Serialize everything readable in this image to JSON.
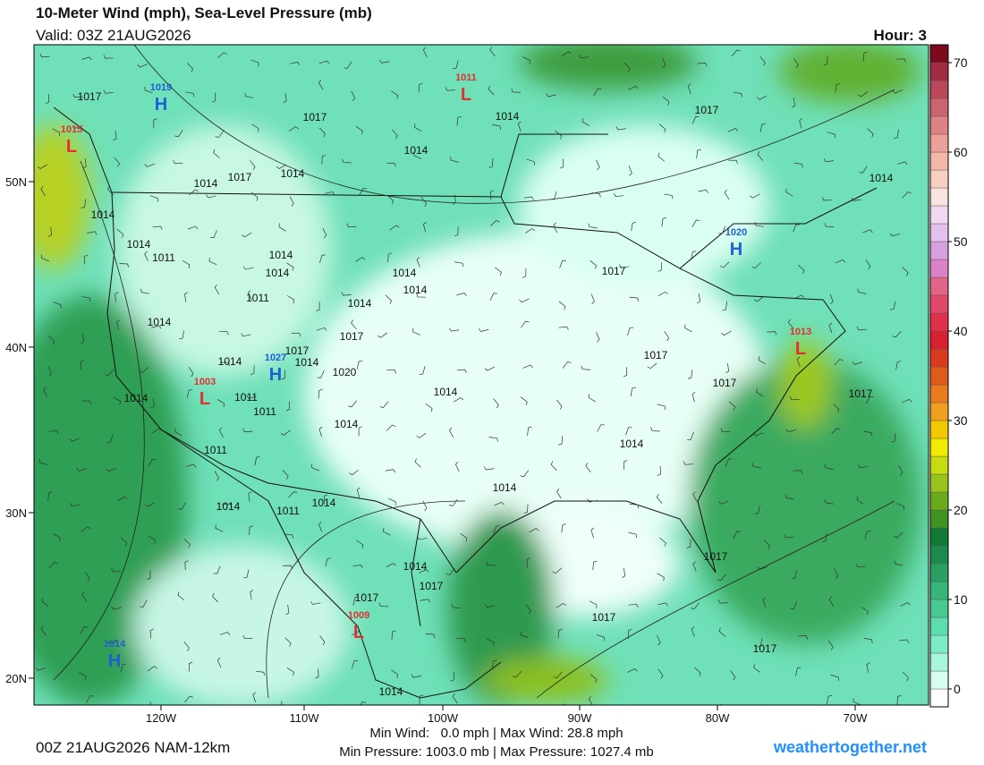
{
  "header": {
    "title": "10-Meter Wind (mph), Sea-Level Pressure (mb)",
    "valid": "Valid: 03Z 21AUG2026",
    "hour": "Hour: 3"
  },
  "map": {
    "lat_labels": [
      "50N",
      "40N",
      "30N",
      "20N"
    ],
    "lon_labels": [
      "120W",
      "110W",
      "100W",
      "90W",
      "80W",
      "70W"
    ],
    "centers": [
      {
        "kind": "H",
        "value": "1019"
      },
      {
        "kind": "L",
        "value": "1015"
      },
      {
        "kind": "L",
        "value": "1011"
      },
      {
        "kind": "H",
        "value": "1020"
      },
      {
        "kind": "L",
        "value": "1013"
      },
      {
        "kind": "H",
        "value": "1027"
      },
      {
        "kind": "L",
        "value": "1003"
      },
      {
        "kind": "L",
        "value": "1009"
      },
      {
        "kind": "H",
        "value": "1014"
      }
    ],
    "isobar_labels": [
      "1017",
      "1017",
      "1014",
      "1014",
      "1017",
      "1014",
      "1017",
      "1014",
      "1014",
      "1014",
      "1014",
      "1011",
      "1014",
      "1014",
      "1014",
      "1014",
      "1017",
      "1011",
      "1014",
      "1014",
      "1017",
      "1017",
      "1014",
      "1014",
      "1020",
      "1017",
      "1017",
      "1014",
      "1011",
      "1014",
      "1017",
      "1011",
      "1014",
      "1014",
      "1011",
      "1014",
      "1014",
      "1011",
      "1014",
      "1014",
      "1017",
      "1017",
      "1017",
      "1017",
      "1017",
      "1014"
    ]
  },
  "colorbar": {
    "lim": [
      -2,
      72
    ],
    "ticks": [
      0,
      10,
      20,
      30,
      40,
      50,
      60,
      70
    ],
    "colors": [
      "#ffffff",
      "#d6fff0",
      "#a8f7dc",
      "#7debc4",
      "#5ddcae",
      "#48c992",
      "#37b57a",
      "#299f63",
      "#1c8a4c",
      "#117a37",
      "#3d9420",
      "#6aab1e",
      "#97c31c",
      "#c7dc10",
      "#f0ec00",
      "#f2c800",
      "#f0a01e",
      "#ea7a1e",
      "#e05a1c",
      "#da3a22",
      "#d8202e",
      "#e0304c",
      "#e2486a",
      "#e26486",
      "#dc82c8",
      "#d8a0e0",
      "#e4c0ec",
      "#f0d8f0",
      "#fae4e0",
      "#f8d0c0",
      "#f4b8a8",
      "#eca09a",
      "#de8284",
      "#cc6470",
      "#b8485a",
      "#a02c44",
      "#7a0a1c"
    ]
  },
  "footer": {
    "run": "00Z 21AUG2026 NAM-12km",
    "wind": "Min Wind:   0.0 mph | Max Wind: 28.8 mph",
    "pressure": "Min Pressure: 1003.0 mb | Max Pressure: 1027.4 mb",
    "site": "weathertogether.net"
  }
}
